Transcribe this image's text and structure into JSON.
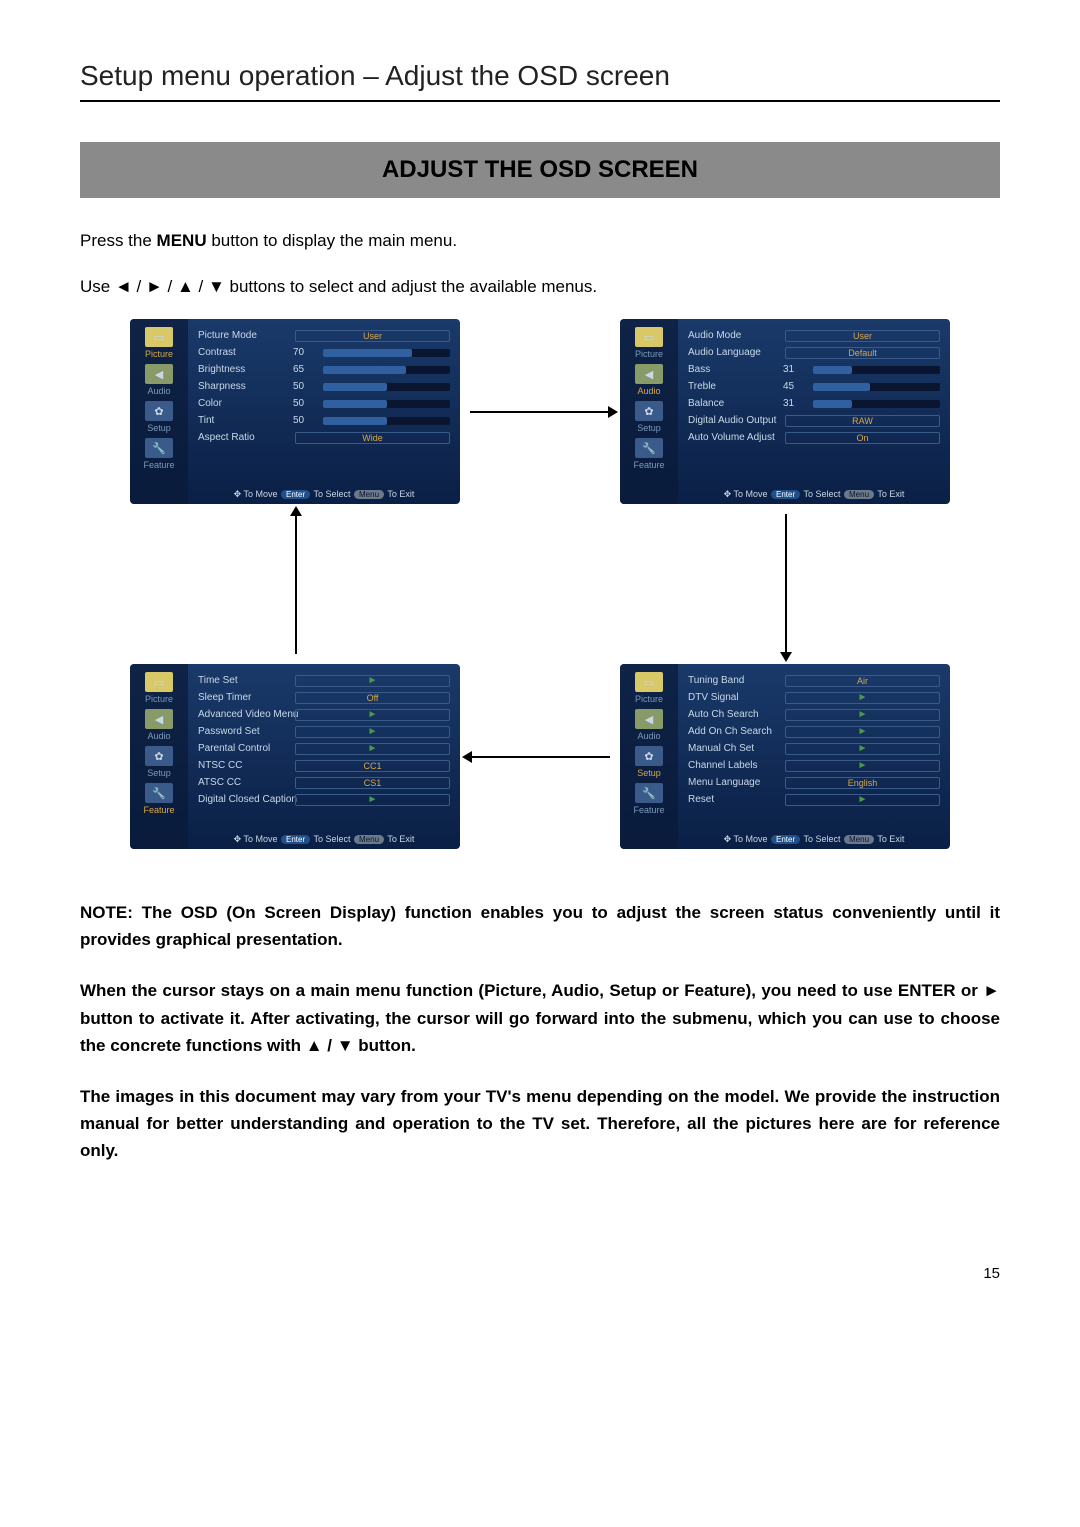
{
  "page": {
    "title": "Setup menu operation – Adjust the OSD screen",
    "banner": "ADJUST THE OSD SCREEN",
    "intro_prefix": "Press the ",
    "intro_menu_word": "MENU",
    "intro_suffix": " button to display the main menu.",
    "intro_line2": "Use  ◄  /  ►  /  ▲  /  ▼  buttons to select and adjust the available menus.",
    "page_number": "15"
  },
  "sidebar_labels": {
    "picture": "Picture",
    "audio": "Audio",
    "setup": "Setup",
    "feature": "Feature"
  },
  "hint": {
    "move": "To Move",
    "enter": "Enter",
    "select": "To Select",
    "menu": "Menu",
    "exit": "To Exit"
  },
  "panels": {
    "picture": {
      "active": "Picture",
      "rows": [
        {
          "type": "select",
          "label": "Picture Mode",
          "value": "User"
        },
        {
          "type": "slider",
          "label": "Contrast",
          "value": 70
        },
        {
          "type": "slider",
          "label": "Brightness",
          "value": 65
        },
        {
          "type": "slider",
          "label": "Sharpness",
          "value": 50
        },
        {
          "type": "slider",
          "label": "Color",
          "value": 50
        },
        {
          "type": "slider",
          "label": "Tint",
          "value": 50
        },
        {
          "type": "select",
          "label": "Aspect Ratio",
          "value": "Wide"
        }
      ]
    },
    "audio": {
      "active": "Audio",
      "rows": [
        {
          "type": "select",
          "label": "Audio Mode",
          "value": "User"
        },
        {
          "type": "select",
          "label": "Audio Language",
          "value": "Default"
        },
        {
          "type": "slider",
          "label": "Bass",
          "value": 31
        },
        {
          "type": "slider",
          "label": "Treble",
          "value": 45
        },
        {
          "type": "slider",
          "label": "Balance",
          "value": 31
        },
        {
          "type": "select",
          "label": "Digital Audio Output",
          "value": "RAW"
        },
        {
          "type": "select",
          "label": "Auto Volume Adjust",
          "value": "On"
        }
      ]
    },
    "feature": {
      "active": "Feature",
      "rows": [
        {
          "type": "submenu",
          "label": "Time Set"
        },
        {
          "type": "select",
          "label": "Sleep Timer",
          "value": "Off"
        },
        {
          "type": "submenu",
          "label": "Advanced Video Menu"
        },
        {
          "type": "submenu",
          "label": "Password Set"
        },
        {
          "type": "submenu",
          "label": "Parental Control"
        },
        {
          "type": "select",
          "label": "NTSC CC",
          "value": "CC1"
        },
        {
          "type": "select",
          "label": "ATSC CC",
          "value": "CS1"
        },
        {
          "type": "submenu",
          "label": "Digital Closed Caption"
        }
      ]
    },
    "setup": {
      "active": "Setup",
      "rows": [
        {
          "type": "select",
          "label": "Tuning Band",
          "value": "Air"
        },
        {
          "type": "submenu",
          "label": "DTV Signal"
        },
        {
          "type": "submenu",
          "label": "Auto Ch Search"
        },
        {
          "type": "submenu",
          "label": "Add On Ch Search"
        },
        {
          "type": "submenu",
          "label": "Manual Ch Set"
        },
        {
          "type": "submenu",
          "label": "Channel Labels"
        },
        {
          "type": "select",
          "label": "Menu Language",
          "value": "English"
        },
        {
          "type": "submenu",
          "label": "Reset"
        }
      ]
    }
  },
  "notes": {
    "p1": "NOTE: The OSD (On Screen Display) function enables you to adjust the screen status conveniently until it provides graphical presentation.",
    "p2": "When the cursor stays on a main menu function (Picture, Audio, Setup or Feature), you need to use ENTER or ► button to activate it. After activating, the cursor will go forward into the submenu, which you can use to choose the concrete functions with ▲ / ▼ button.",
    "p3": "The images in this document may vary from your TV's menu depending on the model. We provide the instruction manual for better understanding and operation to the TV set. Therefore, all the pictures here are for reference only."
  },
  "colors": {
    "panel_bg_top": "#1a3a6a",
    "panel_bg_bottom": "#0a1f45",
    "bar_bg": "#0a1530",
    "bar_fill": "#3060a0",
    "select_text": "#d8a848",
    "label_text": "#c8d8e8",
    "submenu_arrow": "#4a9a4a",
    "banner_bg": "#8a8a8a"
  }
}
